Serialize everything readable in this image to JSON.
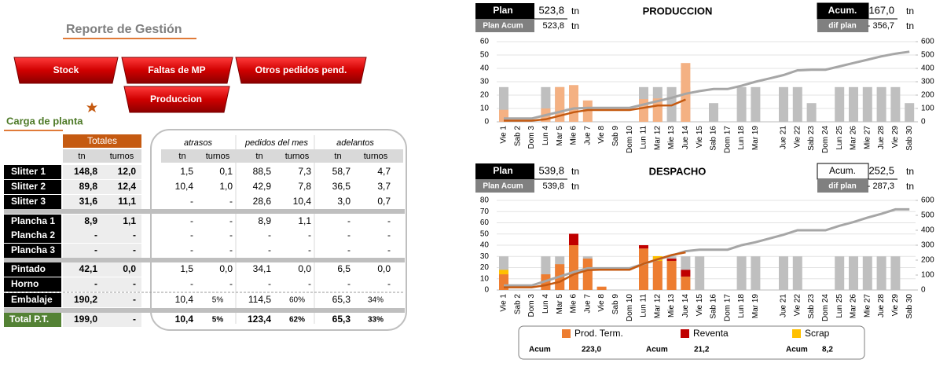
{
  "header": {
    "title": "Reporte de Gestión",
    "section": "Carga de planta"
  },
  "nav": {
    "buttons": [
      "Stock",
      "Faltas de MP",
      "Otros pedidos pend.",
      "Produccion"
    ]
  },
  "table": {
    "groups": [
      "Totales",
      "atrasos",
      "pedidos del mes",
      "adelantos"
    ],
    "subheaders": [
      "tn",
      "turnos"
    ],
    "rows": [
      {
        "name": "Slitter 1",
        "cells": [
          "148,8",
          "12,0",
          "1,5",
          "0,1",
          "88,5",
          "7,3",
          "58,7",
          "4,7"
        ]
      },
      {
        "name": "Slitter 2",
        "cells": [
          "89,8",
          "12,4",
          "10,4",
          "1,0",
          "42,9",
          "7,8",
          "36,5",
          "3,7"
        ]
      },
      {
        "name": "Slitter 3",
        "cells": [
          "31,6",
          "11,1",
          "-",
          "-",
          "28,6",
          "10,4",
          "3,0",
          "0,7"
        ]
      },
      {
        "name": "Plancha 1",
        "cells": [
          "8,9",
          "1,1",
          "-",
          "-",
          "8,9",
          "1,1",
          "-",
          "-"
        ]
      },
      {
        "name": "Plancha 2",
        "cells": [
          "-",
          "-",
          "-",
          "-",
          "-",
          "-",
          "-",
          "-"
        ]
      },
      {
        "name": "Plancha 3",
        "cells": [
          "-",
          "-",
          "-",
          "-",
          "-",
          "-",
          "-",
          "-"
        ]
      },
      {
        "name": "Pintado",
        "cells": [
          "42,1",
          "0,0",
          "1,5",
          "0,0",
          "34,1",
          "0,0",
          "6,5",
          "0,0"
        ]
      },
      {
        "name": "Horno",
        "cells": [
          "-",
          "-",
          "-",
          "-",
          "-",
          "-",
          "-",
          "-"
        ]
      },
      {
        "name": "Embalaje",
        "cells": [
          "190,2",
          "-",
          "10,4",
          "5%",
          "114,5",
          "60%",
          "65,3",
          "34%"
        ]
      },
      {
        "name": "Total P.T.",
        "cells": [
          "199,0",
          "-",
          "10,4",
          "5%",
          "123,4",
          "62%",
          "65,3",
          "33%"
        ]
      }
    ]
  },
  "chart_data": [
    {
      "type": "bar",
      "title": "PRODUCCION",
      "header": {
        "plan_label": "Plan",
        "plan": "523,8",
        "unit": "tn",
        "plan_acum_label": "Plan Acum",
        "plan_acum": "523,8",
        "acum_label": "Acum.",
        "acum": "167,0",
        "dif_label": "dif plan",
        "dif": "- 356,7"
      },
      "categories": [
        "Vie 1",
        "Sab 2",
        "Dom 3",
        "Lun 4",
        "Mar 5",
        "Mie 6",
        "Jue 7",
        "Vie 8",
        "Sab 9",
        "Dom 10",
        "Lun 11",
        "Mar 12",
        "Mie 13",
        "Jue 14",
        "Vie 15",
        "Sab 16",
        "Dom 17",
        "Lun 18",
        "Mar 19",
        null,
        "Jue 21",
        "Vie 22",
        "Sab 23",
        "Dom 24",
        "Lun 25",
        "Mar 26",
        "Mie 27",
        "Jue 28",
        "Vie 29",
        "Sab 30"
      ],
      "ylim": [
        0,
        60
      ],
      "yticks": [
        0,
        10,
        20,
        30,
        40,
        50,
        60
      ],
      "y2lim": [
        0,
        600
      ],
      "y2ticks": [
        0,
        100,
        200,
        300,
        400,
        500,
        600
      ],
      "grid": true,
      "series": [
        {
          "color": "#bfbfbf",
          "values": [
            26,
            0,
            0,
            26,
            26,
            26,
            0,
            0,
            0,
            0,
            26,
            26,
            26,
            26,
            0,
            14,
            0,
            26,
            26,
            0,
            26,
            26,
            14,
            0,
            26,
            26,
            26,
            26,
            26,
            14
          ]
        },
        {
          "color": "#f4b183",
          "values": [
            9,
            0,
            0,
            10,
            26,
            27.5,
            16,
            0,
            0,
            0,
            17,
            17.5,
            0,
            44,
            null,
            null,
            null,
            null,
            null,
            null,
            null,
            null,
            null,
            null,
            null,
            null,
            null,
            null,
            null,
            null
          ]
        },
        {
          "type": "line",
          "axis": "y2",
          "color": "#a6a6a6",
          "values": [
            25,
            25,
            25,
            50,
            75,
            100,
            105,
            105,
            105,
            105,
            130,
            155,
            180,
            210,
            230,
            245,
            245,
            270,
            300,
            325,
            350,
            385,
            390,
            390,
            415,
            440,
            465,
            490,
            510,
            525
          ]
        },
        {
          "type": "line",
          "axis": "y2",
          "color": "#c55a11",
          "values": [
            9,
            9,
            9,
            19,
            45,
            72,
            88,
            88,
            88,
            88,
            105,
            122,
            123,
            167,
            null,
            null,
            null,
            null,
            null,
            null,
            null,
            null,
            null,
            null,
            null,
            null,
            null,
            null,
            null,
            null
          ]
        }
      ]
    },
    {
      "type": "bar",
      "title": "DESPACHO",
      "header": {
        "plan_label": "Plan",
        "plan": "539,8",
        "unit": "tn",
        "plan_acum_label": "Plan Acum",
        "plan_acum": "539,8",
        "acum_label": "Acum.",
        "acum": "252,5",
        "dif_label": "dif plan",
        "dif": "- 287,3"
      },
      "categories": [
        "Vie 1",
        "Sab 2",
        "Dom 3",
        "Lun 4",
        "Mar 5",
        "Mie 6",
        "Jue 7",
        "Vie 8",
        "Sab 9",
        "Dom 10",
        "Lun 11",
        "Mar 12",
        "Mie 13",
        "Jue 14",
        "Vie 15",
        "Sab 16",
        "Dom 17",
        "Lun 18",
        "Mar 19",
        null,
        "Jue 21",
        "Vie 22",
        "Sab 23",
        "Dom 24",
        "Lun 25",
        "Mar 26",
        "Mie 27",
        "Jue 28",
        "Vie 29",
        "Sab 30"
      ],
      "ylim": [
        0,
        80
      ],
      "yticks": [
        0,
        10,
        20,
        30,
        40,
        50,
        60,
        70,
        80
      ],
      "y2lim": [
        0,
        600
      ],
      "y2ticks": [
        0,
        100,
        200,
        300,
        400,
        500,
        600
      ],
      "grid": true,
      "legend_label": "Acum",
      "series": [
        {
          "color": "#bfbfbf",
          "values": [
            30,
            0,
            0,
            30,
            30,
            30,
            30,
            0,
            0,
            0,
            30,
            30,
            30,
            30,
            30,
            0,
            0,
            30,
            30,
            0,
            30,
            30,
            0,
            0,
            30,
            30,
            30,
            30,
            30,
            0
          ]
        },
        {
          "name": "Prod. Term.",
          "acum": "223,0",
          "stacked": true,
          "color": "#ed7d31",
          "values": [
            14,
            0,
            0,
            14,
            23,
            40,
            28,
            3,
            0,
            0,
            37,
            26,
            26,
            12,
            null,
            null,
            null,
            null,
            null,
            null,
            null,
            null,
            null,
            null,
            null,
            null,
            null,
            null,
            null,
            null
          ]
        },
        {
          "name": "Reventa",
          "acum": "21,2",
          "stacked": true,
          "color": "#c00000",
          "values": [
            0,
            0,
            0,
            0,
            0,
            10.2,
            0,
            0,
            0,
            0,
            3,
            0,
            2,
            6,
            null,
            null,
            null,
            null,
            null,
            null,
            null,
            null,
            null,
            null,
            null,
            null,
            null,
            null,
            null,
            null
          ]
        },
        {
          "name": "Scrap",
          "acum": "8,2",
          "stacked": true,
          "color": "#ffc000",
          "values": [
            4,
            0,
            0,
            0,
            0,
            0,
            0,
            0,
            0,
            0,
            0,
            4.2,
            0,
            0,
            null,
            null,
            null,
            null,
            null,
            null,
            null,
            null,
            null,
            null,
            null,
            null,
            null,
            null,
            null,
            null
          ]
        },
        {
          "type": "line",
          "axis": "y2",
          "color": "#a6a6a6",
          "values": [
            30,
            30,
            30,
            60,
            90,
            120,
            145,
            145,
            145,
            145,
            175,
            205,
            230,
            260,
            270,
            270,
            270,
            300,
            320,
            345,
            370,
            400,
            400,
            400,
            430,
            455,
            485,
            510,
            540,
            540
          ]
        },
        {
          "type": "line",
          "axis": "y2",
          "color": "#c55a11",
          "values": [
            18,
            18,
            18,
            32,
            55,
            105,
            133,
            136,
            136,
            136,
            176,
            206,
            234,
            252,
            null,
            null,
            null,
            null,
            null,
            null,
            null,
            null,
            null,
            null,
            null,
            null,
            null,
            null,
            null,
            null
          ]
        }
      ]
    }
  ]
}
